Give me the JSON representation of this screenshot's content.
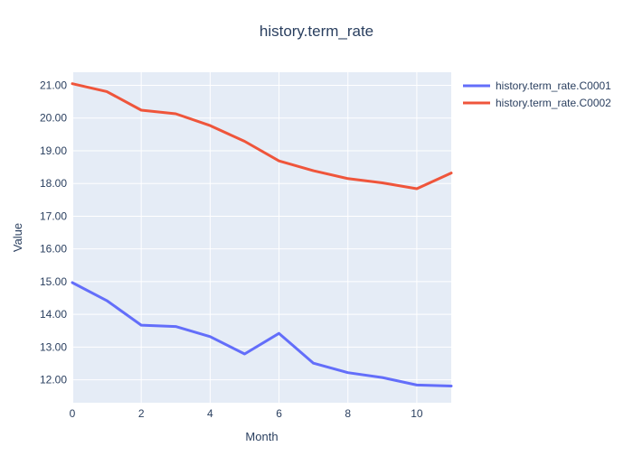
{
  "chart_data": {
    "type": "line",
    "title": "history.term_rate",
    "xlabel": "Month",
    "ylabel": "Value",
    "x": [
      0,
      1,
      2,
      3,
      4,
      5,
      6,
      7,
      8,
      9,
      10,
      11
    ],
    "xlim": [
      0,
      11
    ],
    "ylim": [
      11.3,
      21.4
    ],
    "xticks": [
      0,
      2,
      4,
      6,
      8,
      10
    ],
    "yticks": [
      "12.00",
      "13.00",
      "14.00",
      "15.00",
      "16.00",
      "17.00",
      "18.00",
      "19.00",
      "20.00",
      "21.00"
    ],
    "grid": true,
    "legend_position": "top-right",
    "series": [
      {
        "name": "history.term_rate.C0001",
        "color": "#636efa",
        "values": [
          14.97,
          14.42,
          13.67,
          13.63,
          13.32,
          12.79,
          13.42,
          12.51,
          12.22,
          12.07,
          11.84,
          11.81
        ]
      },
      {
        "name": "history.term_rate.C0002",
        "color": "#ef553b",
        "values": [
          21.05,
          20.81,
          20.24,
          20.13,
          19.77,
          19.29,
          18.69,
          18.39,
          18.15,
          18.02,
          17.84,
          18.32
        ]
      }
    ]
  }
}
